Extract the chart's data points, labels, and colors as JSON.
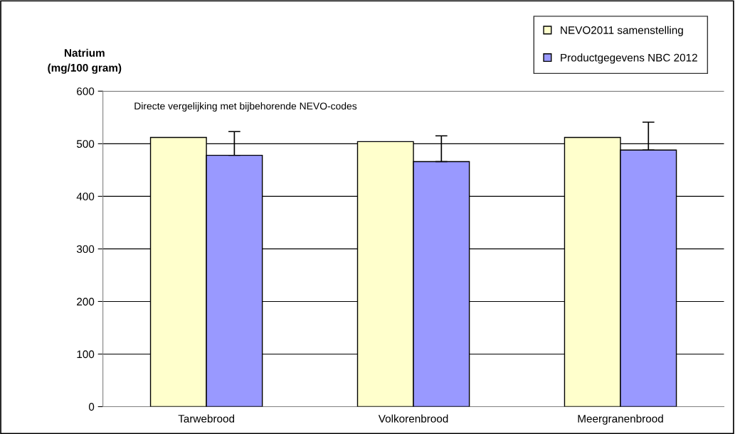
{
  "chart_data": {
    "type": "bar",
    "ylabel": "Natrium\n(mg/100 gram)",
    "categories": [
      "Tarwebrood",
      "Volkorenbrood",
      "Meergranenbrood"
    ],
    "series": [
      {
        "name": "NEVO2011 samenstelling",
        "color": "#ffffcc",
        "values": [
          512,
          504,
          512
        ]
      },
      {
        "name": "Productgegevens NBC 2012",
        "color": "#9999ff",
        "values": [
          478,
          466,
          488
        ],
        "errors": [
          [
            478,
            523
          ],
          [
            466,
            515
          ],
          [
            488,
            541
          ]
        ]
      }
    ],
    "ylim": [
      0,
      600
    ],
    "yticks": [
      0,
      100,
      200,
      300,
      400,
      500,
      600
    ],
    "grid": "y",
    "legend": "top right",
    "annotations": [
      "Directe vergelijking met bijbehorende NEVO-codes"
    ]
  }
}
